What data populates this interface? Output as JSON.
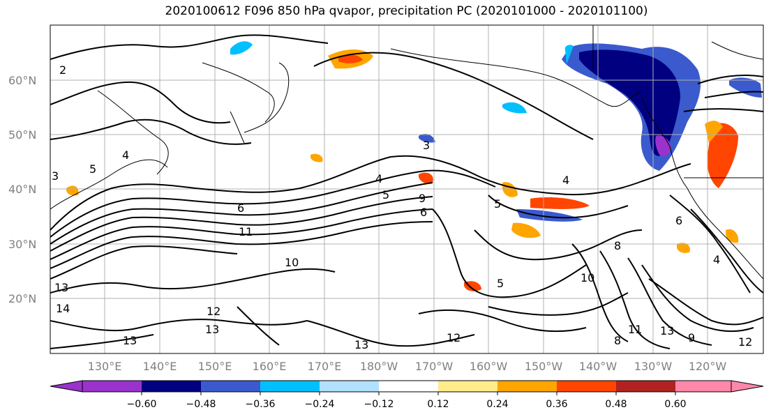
{
  "title": "2020100612 F096 850 hPa qvapor, precipitation PC (2020101000 - 2020101100)",
  "axes": {
    "lat_labels": [
      "60°N",
      "50°N",
      "40°N",
      "30°N",
      "20°N"
    ],
    "lon_labels": [
      "130°E",
      "140°E",
      "150°E",
      "160°E",
      "170°E",
      "180°W",
      "170°W",
      "160°W",
      "150°W",
      "140°W",
      "130°W",
      "120°W"
    ]
  },
  "colorbar": {
    "colors": [
      "#9933cc",
      "#000080",
      "#3a5acd",
      "#00bfff",
      "#b0e2ff",
      "#ffffff",
      "#ffec8b",
      "#ffa500",
      "#ff4500",
      "#b22222",
      "#ff88aa"
    ],
    "ticks": [
      "−0.60",
      "−0.48",
      "−0.36",
      "−0.24",
      "−0.12",
      "0.12",
      "0.24",
      "0.36",
      "0.48",
      "0.60"
    ]
  },
  "contour_labels": [
    "2",
    "3",
    "4",
    "5",
    "6",
    "11",
    "3",
    "4",
    "5",
    "9",
    "6",
    "5",
    "4",
    "6",
    "8",
    "10",
    "13",
    "12",
    "13",
    "13",
    "14",
    "12",
    "9",
    "8",
    "11",
    "10",
    "12",
    "4",
    "13",
    "13",
    "5"
  ]
}
